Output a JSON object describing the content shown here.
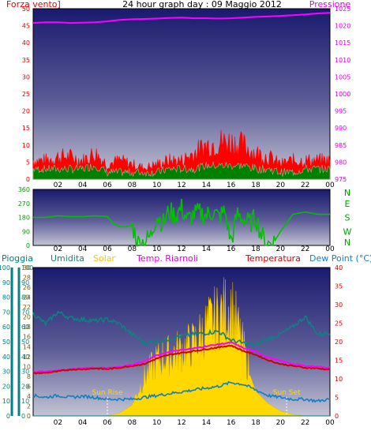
{
  "header": {
    "left_label": "Forza vento]",
    "title": "24 hour graph day : 09 Maggio 2012",
    "right_label": "Pressione"
  },
  "wind_dir_labels": [
    "N",
    "W",
    "S",
    "E",
    "N"
  ],
  "bottom_header": {
    "rain": "Pioggia",
    "humidity": "Umidita",
    "solar": "Solar",
    "wind_chill": "Temp. Riarnoli",
    "temperature": "Temperatura",
    "dew_point": "Dew Point (°C)"
  },
  "annotations": {
    "sunrise": "Sun Rise",
    "sunset": "Sun Set"
  },
  "x_ticks": [
    "02",
    "04",
    "06",
    "08",
    "10",
    "12",
    "14",
    "16",
    "18",
    "20",
    "22",
    "00"
  ],
  "colors": {
    "wind_gust": "#ff0000",
    "wind_avg": "#008000",
    "pressure": "#ff00ff",
    "wind_dir": "#00c000",
    "temperature": "#d00000",
    "wind_chill": "#ff00ff",
    "dew_point": "#1080c0",
    "humidity": "#108080",
    "solar": "#ffd800",
    "rain": "#008080"
  },
  "chart_data": [
    {
      "type": "area",
      "panel": "wind_pressure",
      "y_left": {
        "label": "Forza vento]",
        "ticks": [
          "0",
          "5",
          "10",
          "15",
          "20",
          "25",
          "30",
          "35",
          "40",
          "45",
          "50"
        ],
        "range": [
          0,
          50
        ]
      },
      "y_right": {
        "label": "Pressione",
        "ticks": [
          "975",
          "980",
          "985",
          "990",
          "995",
          "1000",
          "1005",
          "1010",
          "1015",
          "1020",
          "1025"
        ],
        "range": [
          975,
          1025
        ]
      },
      "x_hours": [
        0,
        1,
        2,
        3,
        4,
        5,
        6,
        7,
        8,
        9,
        10,
        11,
        12,
        13,
        14,
        15,
        16,
        17,
        18,
        19,
        20,
        21,
        22,
        23,
        24
      ],
      "series": [
        {
          "key": "wind_gust",
          "values": [
            5,
            5,
            6,
            6,
            5,
            7,
            4,
            5,
            4,
            3,
            4,
            5,
            5,
            7,
            9,
            10,
            10,
            9,
            7,
            6,
            4,
            5,
            5,
            5,
            5
          ]
        },
        {
          "key": "wind_avg",
          "values": [
            3,
            3,
            3,
            3,
            3,
            4,
            2,
            2,
            2,
            2,
            2,
            3,
            3,
            3,
            4,
            4,
            4,
            4,
            3,
            3,
            2,
            2,
            3,
            3,
            3
          ]
        },
        {
          "key": "pressure",
          "values": [
            1020.8,
            1021.0,
            1021.0,
            1020.8,
            1020.9,
            1021.0,
            1021.3,
            1021.7,
            1021.9,
            1022.0,
            1022.1,
            1022.3,
            1022.4,
            1022.2,
            1022.2,
            1022.1,
            1022.2,
            1022.4,
            1022.6,
            1022.7,
            1022.9,
            1023.1,
            1023.3,
            1023.6,
            1023.8
          ]
        }
      ]
    },
    {
      "type": "line",
      "panel": "wind_direction",
      "y_left": {
        "ticks": [
          "0",
          "90",
          "180",
          "270",
          "360"
        ],
        "range": [
          0,
          360
        ]
      },
      "y_right_labels": [
        "N",
        "W",
        "S",
        "E",
        "N"
      ],
      "x_hours": [
        0,
        1,
        2,
        3,
        4,
        5,
        6,
        6.5,
        7,
        7.5,
        8,
        8.5,
        9,
        9.5,
        10,
        10.5,
        11,
        11.5,
        12,
        12.5,
        13,
        13.5,
        14,
        14.5,
        15,
        15.5,
        16,
        16.5,
        17,
        17.5,
        18,
        18.5,
        19,
        19.5,
        20,
        21,
        22,
        23,
        24
      ],
      "series": [
        {
          "key": "wind_dir",
          "values": [
            180,
            180,
            190,
            185,
            185,
            190,
            185,
            140,
            120,
            120,
            130,
            15,
            25,
            60,
            200,
            140,
            220,
            190,
            240,
            160,
            200,
            210,
            190,
            220,
            180,
            220,
            20,
            200,
            170,
            140,
            180,
            60,
            10,
            25,
            90,
            200,
            215,
            200,
            200
          ]
        }
      ]
    },
    {
      "type": "line",
      "panel": "temperature_humidity_solar",
      "y_axes": {
        "rain": {
          "ticks": [
            "0",
            "10",
            "20",
            "30",
            "40",
            "50",
            "60",
            "70",
            "80",
            "90",
            "100"
          ],
          "range": [
            0,
            100
          ]
        },
        "humidity": {
          "ticks": [
            "0",
            "10",
            "20",
            "30",
            "40",
            "50",
            "60",
            "70",
            "80",
            "90",
            "100"
          ],
          "range": [
            0,
            100
          ]
        },
        "solar": {
          "ticks": [
            "0",
            "2",
            "4",
            "6",
            "8",
            "10",
            "12",
            "14",
            "16",
            "18",
            "20",
            "22",
            "24",
            "26",
            "28",
            "30"
          ],
          "range": [
            0,
            30
          ]
        },
        "temperature": {
          "ticks": [
            "0",
            "5",
            "10",
            "15",
            "20",
            "25",
            "30",
            "35",
            "40"
          ],
          "range": [
            0,
            40
          ]
        }
      },
      "x_hours": [
        0,
        1,
        2,
        3,
        4,
        5,
        6,
        7,
        8,
        9,
        10,
        11,
        12,
        13,
        14,
        15,
        16,
        17,
        18,
        19,
        20,
        21,
        22,
        23,
        24
      ],
      "series": [
        {
          "key": "temperature",
          "values": [
            11.5,
            11.6,
            12.0,
            12.5,
            12.6,
            12.8,
            12.6,
            13.0,
            13.5,
            14.0,
            15.5,
            16.5,
            17.0,
            17.5,
            18.0,
            18.5,
            19.0,
            17.5,
            16.5,
            15.0,
            14.0,
            13.5,
            13.0,
            12.8,
            12.5
          ]
        },
        {
          "key": "wind_chill",
          "values": [
            11.8,
            12.0,
            12.3,
            12.6,
            12.8,
            13.0,
            12.9,
            13.2,
            13.8,
            14.8,
            16.3,
            17.3,
            17.8,
            18.2,
            18.8,
            19.3,
            19.8,
            18.3,
            17.3,
            15.8,
            14.8,
            14.0,
            13.5,
            13.3,
            13.0
          ]
        },
        {
          "key": "dew_point",
          "values": [
            5.5,
            5.0,
            5.5,
            5.0,
            5.3,
            5.0,
            4.5,
            4.5,
            4.5,
            5.0,
            5.5,
            6.0,
            6.5,
            7.0,
            7.5,
            8.0,
            9.0,
            8.5,
            7.0,
            5.5,
            5.0,
            4.5,
            4.5,
            4.0,
            4.5
          ]
        },
        {
          "key": "humidity",
          "values": [
            69,
            62,
            70,
            66,
            65,
            64,
            65,
            62,
            55,
            49,
            50,
            52,
            54,
            55,
            56,
            57,
            51,
            49,
            48,
            52,
            55,
            60,
            67,
            55,
            56
          ]
        },
        {
          "key": "solar",
          "values": [
            0,
            0,
            0,
            0,
            0,
            0,
            0,
            0.6,
            2.2,
            7,
            10,
            11,
            12,
            13,
            16,
            18,
            20,
            12,
            5,
            2.5,
            1,
            0.3,
            0,
            0,
            0
          ]
        },
        {
          "key": "rain",
          "values": [
            0,
            0,
            0,
            0,
            0,
            0,
            0,
            0,
            0,
            0,
            0,
            0,
            0,
            0,
            0,
            0,
            0,
            0,
            0,
            0,
            0,
            0,
            0,
            0,
            0
          ]
        }
      ],
      "sunrise_hour": 6,
      "sunset_hour": 20.5
    }
  ]
}
